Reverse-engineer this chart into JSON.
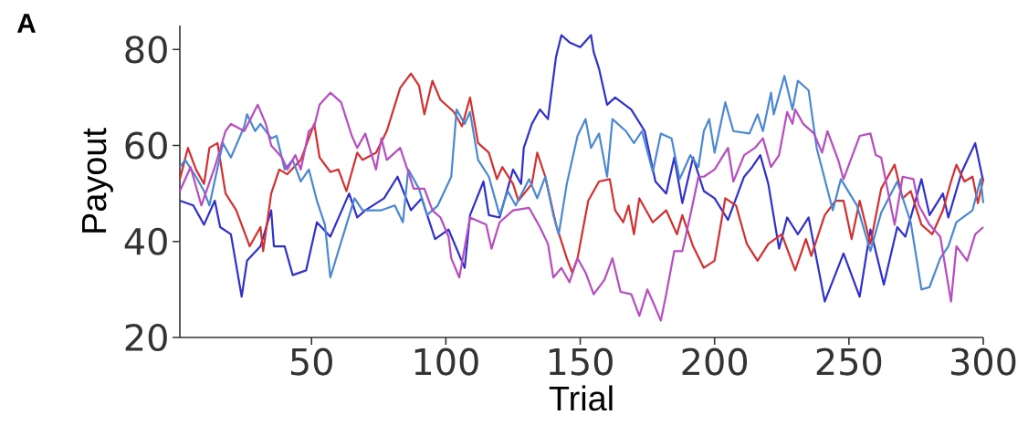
{
  "chart_data": {
    "type": "line",
    "xlabel": "Trial",
    "ylabel": "Payout",
    "annotations": [
      "A"
    ],
    "xlim": [
      1,
      300
    ],
    "ylim": [
      20,
      85
    ],
    "xticks": [
      50,
      100,
      150,
      200,
      250,
      300
    ],
    "yticks": [
      20,
      40,
      60,
      80
    ],
    "series": [
      {
        "color": "#3030d0",
        "x": [
          1,
          6,
          10,
          14,
          16,
          20,
          24,
          26,
          31,
          35,
          36,
          40,
          43,
          48,
          52,
          57,
          64,
          67,
          70,
          77,
          82,
          87,
          91,
          96,
          101,
          107,
          109,
          114,
          116,
          120,
          125,
          128,
          129,
          132,
          135,
          138,
          141,
          143,
          146,
          150,
          154,
          155,
          157,
          160,
          163,
          169,
          174,
          178,
          182,
          185,
          188,
          192,
          196,
          200,
          205,
          211,
          214,
          217,
          220,
          224,
          227,
          231,
          235,
          241,
          248,
          254,
          258,
          263,
          268,
          271,
          277,
          280,
          285,
          287,
          292,
          297,
          300
        ],
        "values": [
          48.5,
          47.5,
          43.5,
          48.5,
          43,
          41.5,
          28.5,
          36,
          39,
          46.5,
          39,
          39,
          33,
          34,
          44,
          41,
          50,
          45,
          46.5,
          49,
          53.5,
          46.5,
          49,
          40.5,
          42.5,
          34.5,
          45.5,
          52.5,
          45.5,
          45,
          55,
          52,
          59.5,
          64.5,
          67.5,
          65.5,
          78.5,
          83,
          81.5,
          80.5,
          83,
          79.5,
          76,
          68.5,
          70,
          67.5,
          63,
          52.5,
          50,
          57.5,
          48,
          57.5,
          50.5,
          49,
          44.5,
          53.5,
          55.5,
          58,
          52,
          38.5,
          45,
          41.5,
          45,
          27.5,
          37.5,
          28.5,
          42.5,
          31,
          43,
          41,
          53,
          45.5,
          50,
          45,
          54.5,
          60.5,
          52.5
        ]
      },
      {
        "color": "#d62f2f",
        "x": [
          1,
          4,
          7,
          10,
          12,
          15,
          18,
          22,
          27,
          31,
          32,
          35,
          38,
          41,
          46,
          51,
          53,
          57,
          60,
          63,
          67,
          69,
          74,
          78,
          83,
          87,
          90,
          92,
          95,
          98,
          103,
          106,
          109,
          112,
          116,
          119,
          121,
          125,
          127,
          132,
          134,
          137,
          141,
          145,
          147,
          149,
          153,
          157,
          161,
          163,
          166,
          168,
          170,
          172,
          177,
          182,
          186,
          188,
          192,
          196,
          200,
          204,
          208,
          212,
          216,
          220,
          225,
          230,
          234,
          236,
          241,
          245,
          248,
          251,
          254,
          258,
          262,
          267,
          270,
          273,
          277,
          281,
          285,
          288,
          290,
          293,
          296,
          298,
          300
        ],
        "values": [
          53,
          59.5,
          55,
          52,
          59.5,
          60.5,
          50,
          46.5,
          39,
          43,
          38,
          50,
          55,
          54,
          57,
          64.5,
          57.5,
          54.5,
          55,
          50.5,
          58.5,
          57,
          58.5,
          63,
          72,
          75,
          72.5,
          66.5,
          73.5,
          69.5,
          67,
          64,
          70,
          60.5,
          58.5,
          53,
          55.5,
          52,
          48.5,
          52,
          58.5,
          53.5,
          43.5,
          36.5,
          33.5,
          36.5,
          48.5,
          52.5,
          53,
          46.5,
          44,
          47.5,
          41.5,
          49,
          44,
          46.5,
          41.5,
          45.5,
          39,
          34.5,
          36,
          49,
          47.5,
          39.5,
          36,
          39.5,
          41.5,
          34,
          40.5,
          37,
          45.5,
          48.5,
          48.5,
          40.5,
          48.5,
          39.5,
          51,
          56,
          49,
          50.5,
          43.5,
          41.5,
          46.5,
          52.5,
          56,
          52.5,
          53.5,
          48,
          53
        ]
      },
      {
        "color": "#4a88d4",
        "x": [
          1,
          3,
          7,
          10,
          12,
          17,
          20,
          25,
          26,
          29,
          31,
          35,
          37,
          40,
          43,
          46,
          49,
          52,
          55,
          57,
          60,
          66,
          69,
          76,
          81,
          84,
          86,
          90,
          93,
          97,
          102,
          104,
          107,
          109,
          112,
          116,
          120,
          123,
          126,
          131,
          134,
          137,
          140,
          142,
          145,
          149,
          152,
          154,
          157,
          160,
          162,
          167,
          170,
          173,
          177,
          180,
          184,
          187,
          191,
          194,
          196,
          198,
          200,
          204,
          207,
          213,
          216,
          218,
          221,
          222,
          226,
          229,
          231,
          235,
          238,
          244,
          247,
          253,
          258,
          262,
          268,
          273,
          277,
          280,
          284,
          287,
          290,
          296,
          299,
          300
        ],
        "values": [
          55.5,
          57,
          53.5,
          50.5,
          47.5,
          60.5,
          57.5,
          64,
          66.5,
          63,
          64.5,
          61.5,
          62,
          55,
          57,
          52.5,
          55,
          48.5,
          43.5,
          32.5,
          38,
          49,
          46.5,
          46.5,
          47.5,
          44,
          55,
          51,
          45.5,
          47.5,
          53.5,
          67.5,
          64.5,
          67,
          57,
          53.5,
          45.5,
          50.5,
          47.5,
          53,
          49,
          53.5,
          45.5,
          41.5,
          52,
          62,
          65.5,
          59.5,
          62.5,
          53.5,
          65.5,
          63,
          60.5,
          63,
          54.5,
          62.5,
          61.5,
          53,
          58,
          55.5,
          63,
          65.5,
          58.5,
          69,
          63,
          62.5,
          66.5,
          63,
          71,
          66.5,
          74.5,
          67.5,
          73.5,
          71.5,
          59.5,
          46.5,
          53,
          47.5,
          38,
          46,
          52.5,
          44,
          30,
          30.5,
          36.5,
          39,
          44,
          46.5,
          53,
          48
        ]
      },
      {
        "color": "#b84cc0",
        "x": [
          1,
          5,
          9,
          14,
          18,
          20,
          25,
          30,
          33,
          35,
          39,
          41,
          44,
          46,
          49,
          51,
          53,
          57,
          61,
          65,
          67,
          70,
          74,
          76,
          78,
          83,
          86,
          88,
          92,
          95,
          98,
          101,
          102,
          105,
          109,
          115,
          117,
          120,
          125,
          131,
          135,
          138,
          140,
          143,
          146,
          149,
          152,
          155,
          159,
          162,
          165,
          169,
          172,
          175,
          177,
          180,
          182,
          185,
          188,
          191,
          194,
          196,
          200,
          205,
          207,
          211,
          215,
          218,
          221,
          224,
          227,
          229,
          230,
          233,
          237,
          240,
          242,
          246,
          248,
          254,
          258,
          260,
          262,
          267,
          270,
          274,
          276,
          280,
          284,
          288,
          290,
          294,
          297,
          300
        ],
        "values": [
          50.5,
          55.5,
          47.5,
          55.5,
          63,
          64.5,
          63,
          68.5,
          64.5,
          60,
          57.5,
          55,
          58,
          55,
          63,
          64,
          68.5,
          71,
          69,
          62,
          59.5,
          62.5,
          55,
          61.5,
          57,
          59.5,
          54.5,
          51,
          51,
          46.5,
          45,
          41,
          36.5,
          32.5,
          45,
          43.5,
          38.5,
          44,
          46.5,
          47,
          43,
          39.5,
          32.5,
          34.5,
          31.5,
          36.5,
          33.5,
          29,
          32,
          36.5,
          29.5,
          29,
          24.5,
          30,
          27.5,
          23.5,
          29,
          38,
          38,
          45.5,
          53.5,
          53.5,
          55,
          59.5,
          52.5,
          58,
          59.5,
          61.5,
          55.5,
          58,
          67,
          64.5,
          67.5,
          64.5,
          62.5,
          58.5,
          63,
          57,
          53,
          62,
          62.5,
          58,
          57.5,
          43.5,
          53.5,
          53,
          47.5,
          43.5,
          41,
          27.5,
          39,
          36,
          41.5,
          43
        ]
      }
    ]
  }
}
